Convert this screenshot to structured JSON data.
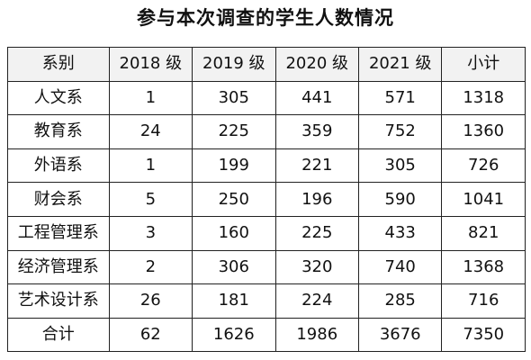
{
  "title": "参与本次调查的学生人数情况",
  "table": {
    "headers": [
      "系别",
      "2018 级",
      "2019 级",
      "2020 级",
      "2021 级",
      "小计"
    ],
    "rows": [
      [
        "人文系",
        "1",
        "305",
        "441",
        "571",
        "1318"
      ],
      [
        "教育系",
        "24",
        "225",
        "359",
        "752",
        "1360"
      ],
      [
        "外语系",
        "1",
        "199",
        "221",
        "305",
        "726"
      ],
      [
        "财会系",
        "5",
        "250",
        "196",
        "590",
        "1041"
      ],
      [
        "工程管理系",
        "3",
        "160",
        "225",
        "433",
        "821"
      ],
      [
        "经济管理系",
        "2",
        "306",
        "320",
        "740",
        "1368"
      ],
      [
        "艺术设计系",
        "26",
        "181",
        "224",
        "285",
        "716"
      ]
    ],
    "totals": [
      "合计",
      "62",
      "1626",
      "1986",
      "3676",
      "7350"
    ]
  }
}
